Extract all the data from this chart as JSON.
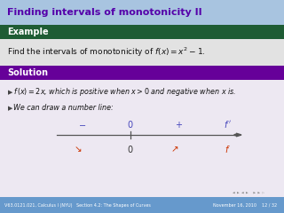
{
  "title": "Finding intervals of monotonicity II",
  "title_color": "#5500aa",
  "title_bg": "#a8c4e0",
  "example_label": "Example",
  "example_bg": "#1e5c34",
  "example_text_color": "#ffffff",
  "example_body": "Find the intervals of monotonicity of $f(x) = x^2 - 1$.",
  "example_body_bg": "#e2e2e2",
  "solution_label": "Solution",
  "solution_bg": "#660099",
  "solution_text_color": "#ffffff",
  "solution_body_bg": "#ede8f2",
  "bullet1": "$f\\,(x) = 2x$, which is positive when $x > 0$ and negative when $x$ is.",
  "bullet2": "We can draw a number line:",
  "footer_left": "V63.0121.021, Calculus I (NYU)",
  "footer_mid": "Section 4.2: The Shapes of Curves",
  "footer_right": "November 16, 2010",
  "footer_page": "12 / 32",
  "footer_bg": "#6699cc",
  "footer_text_color": "#ffffff",
  "line_color": "#555555",
  "minus_color": "#4444bb",
  "plus_color": "#4444bb",
  "f_prime_color": "#4444bb",
  "zero_top_color": "#4444bb",
  "f_bot_color": "#cc3300",
  "zero_bot_color": "#333333",
  "arrow_down_color": "#cc3300",
  "arrow_up_color": "#cc3300",
  "nav_color": "#888888"
}
